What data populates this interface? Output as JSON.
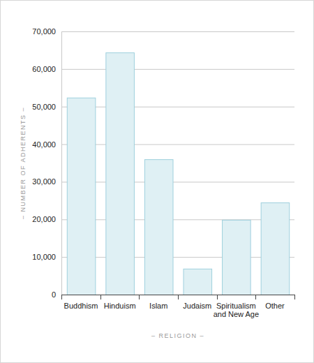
{
  "chart_data": {
    "type": "bar",
    "x_label": "– RELIGION –",
    "y_label": "– NUMBER OF ADHERENTS –",
    "categories": [
      "Buddhism",
      "Hinduism",
      "Islam",
      "Judaism",
      "Spiritualism and New Age",
      "Other"
    ],
    "values": [
      52400,
      64400,
      36000,
      6900,
      19900,
      24500
    ],
    "color": "#dff0f4",
    "ylim": [
      0,
      70000
    ],
    "yticks": [
      0,
      {
        "value": 10000,
        "label": "10,000"
      },
      {
        "value": 20000,
        "label": "20,000"
      },
      {
        "value": 30000,
        "label": "30,000"
      },
      {
        "value": 40000,
        "label": "40,000"
      },
      {
        "value": 50000,
        "label": "50,000"
      },
      {
        "value": 60000,
        "label": "60,000"
      },
      {
        "value": 70000,
        "label": "70,000"
      }
    ],
    "grid": true
  }
}
